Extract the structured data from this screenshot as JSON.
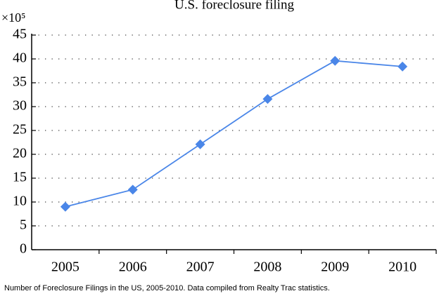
{
  "chart_data": {
    "type": "line",
    "title": "U.S. foreclosure filing",
    "y_multiplier": "×10⁵",
    "categories": [
      "2005",
      "2006",
      "2007",
      "2008",
      "2009",
      "2010"
    ],
    "values": [
      9.0,
      12.6,
      22.1,
      31.6,
      39.6,
      38.4
    ],
    "color": "#4a86e8",
    "ylim": [
      0,
      45
    ],
    "yticks": [
      0,
      5,
      10,
      15,
      20,
      25,
      30,
      35,
      40,
      45
    ],
    "grid": true,
    "caption": "Number of Foreclosure Filings in the US, 2005-2010. Data compiled from Realty Trac statistics."
  }
}
